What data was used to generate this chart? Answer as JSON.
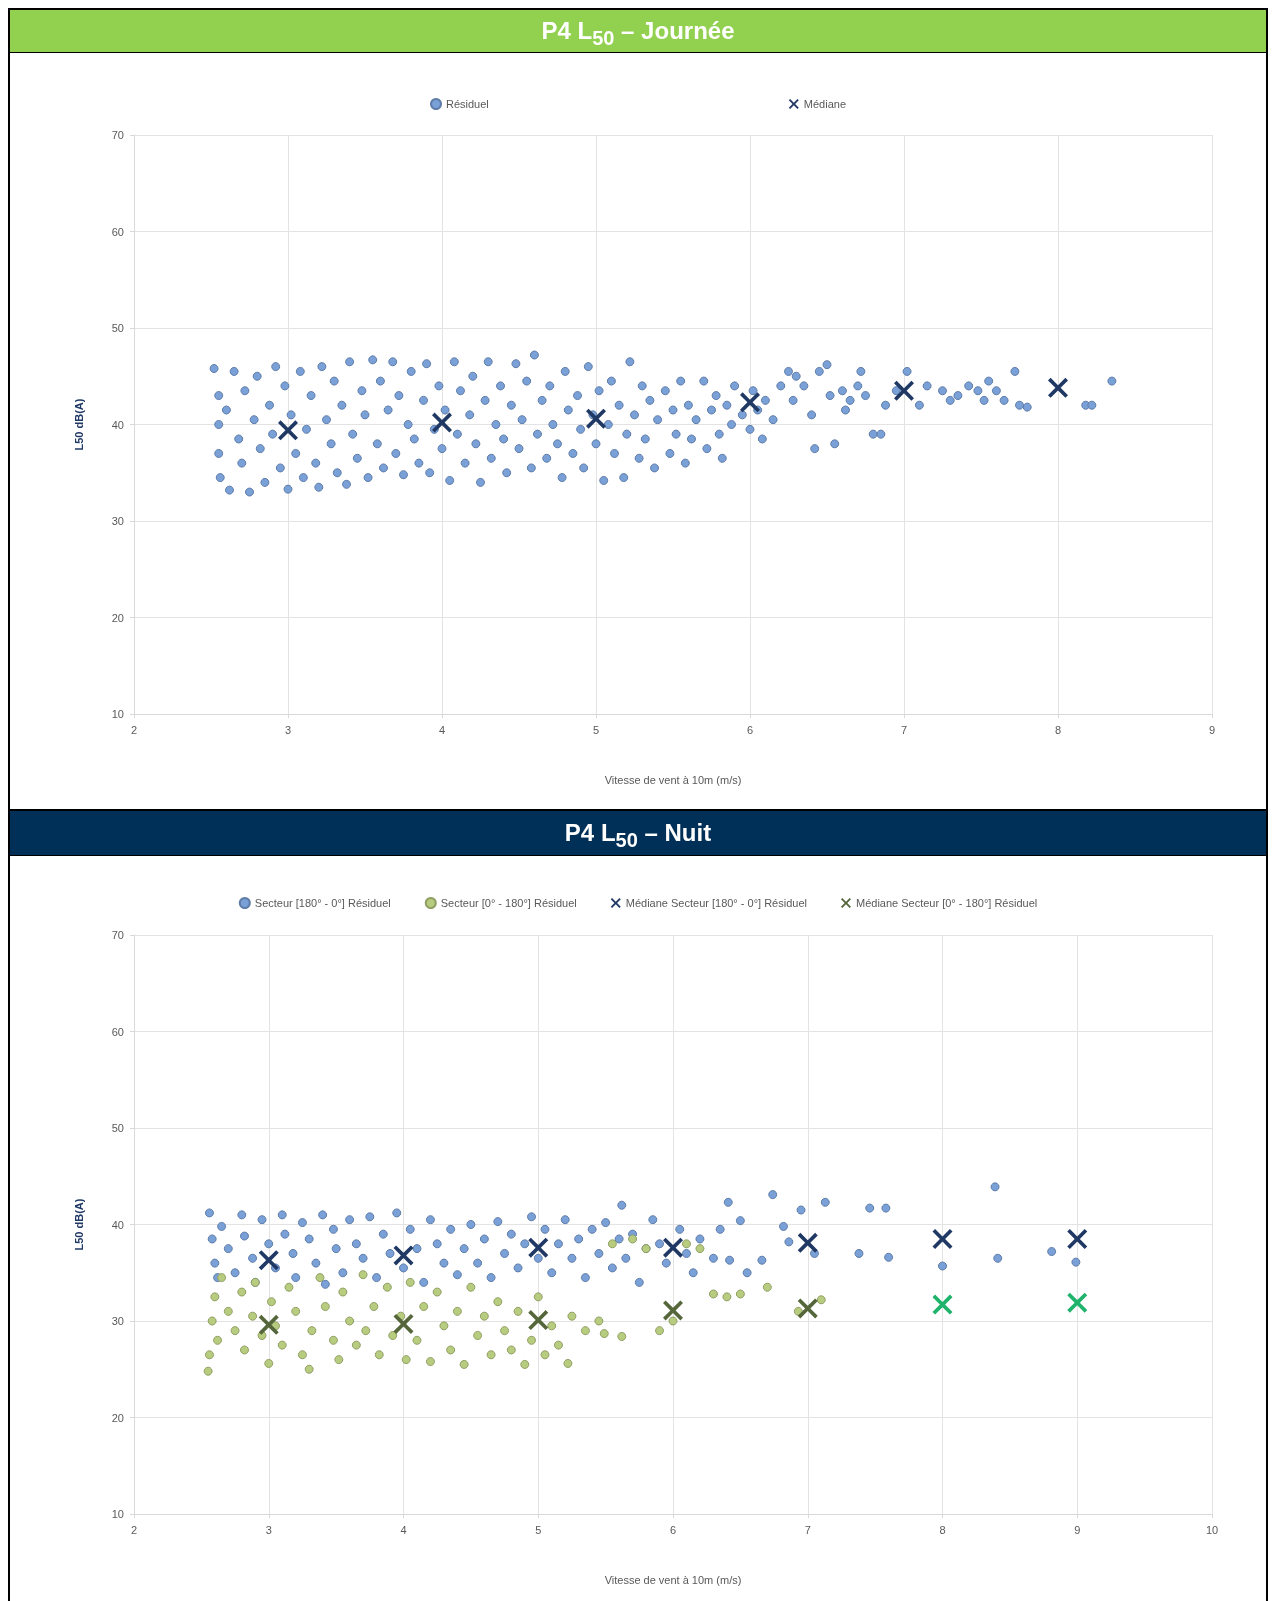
{
  "chart_data": [
    {
      "type": "scatter",
      "title": "P4 L$_{50}$ – Journée",
      "xlabel": "Vitesse de vent à 10m (m/s)",
      "ylabel": "L50 dB(A)",
      "xlim": [
        2,
        9
      ],
      "xticks": [
        2,
        3,
        4,
        5,
        6,
        7,
        8,
        9
      ],
      "ylim": [
        10,
        70
      ],
      "yticks": [
        10,
        20,
        30,
        40,
        50,
        60,
        70
      ],
      "grid": true,
      "legend": "top",
      "series": [
        {
          "name": "Résiduel",
          "color": "#7aa0d8",
          "marker": "circle",
          "x": [
            2.52,
            2.55,
            2.55,
            2.55,
            2.56,
            2.6,
            2.62,
            2.65,
            2.68,
            2.7,
            2.72,
            2.75,
            2.78,
            2.8,
            2.82,
            2.85,
            2.88,
            2.9,
            2.92,
            2.95,
            2.98,
            3.0,
            3.02,
            3.05,
            3.08,
            3.1,
            3.12,
            3.15,
            3.18,
            3.2,
            3.22,
            3.25,
            3.28,
            3.3,
            3.32,
            3.35,
            3.38,
            3.4,
            3.42,
            3.45,
            3.48,
            3.5,
            3.52,
            3.55,
            3.58,
            3.6,
            3.62,
            3.65,
            3.68,
            3.7,
            3.72,
            3.75,
            3.78,
            3.8,
            3.82,
            3.85,
            3.88,
            3.9,
            3.92,
            3.95,
            3.98,
            4.0,
            4.02,
            4.05,
            4.08,
            4.1,
            4.12,
            4.15,
            4.18,
            4.2,
            4.22,
            4.25,
            4.28,
            4.3,
            4.32,
            4.35,
            4.38,
            4.4,
            4.42,
            4.45,
            4.48,
            4.5,
            4.52,
            4.55,
            4.58,
            4.6,
            4.62,
            4.65,
            4.68,
            4.7,
            4.72,
            4.75,
            4.78,
            4.8,
            4.82,
            4.85,
            4.88,
            4.9,
            4.92,
            4.95,
            4.98,
            5.0,
            5.02,
            5.05,
            5.08,
            5.1,
            5.12,
            5.15,
            5.18,
            5.2,
            5.22,
            5.25,
            5.28,
            5.3,
            5.32,
            5.35,
            5.38,
            5.4,
            5.45,
            5.48,
            5.5,
            5.52,
            5.55,
            5.58,
            5.6,
            5.62,
            5.65,
            5.7,
            5.72,
            5.75,
            5.78,
            5.8,
            5.82,
            5.85,
            5.88,
            5.9,
            5.95,
            6.0,
            6.02,
            6.05,
            6.08,
            6.1,
            6.15,
            6.2,
            6.25,
            6.28,
            6.3,
            6.35,
            6.4,
            6.42,
            6.45,
            6.5,
            6.52,
            6.55,
            6.6,
            6.62,
            6.65,
            6.7,
            6.72,
            6.75,
            6.8,
            6.85,
            6.88,
            6.95,
            7.02,
            7.1,
            7.15,
            7.25,
            7.3,
            7.35,
            7.42,
            7.48,
            7.52,
            7.55,
            7.6,
            7.65,
            7.72,
            7.75,
            7.8,
            8.18,
            8.22,
            8.35
          ],
          "values": [
            45.8,
            43,
            40,
            37,
            34.5,
            41.5,
            33.2,
            45.5,
            38.5,
            36,
            43.5,
            33,
            40.5,
            45,
            37.5,
            34,
            42,
            39,
            46,
            35.5,
            44,
            33.3,
            41,
            37,
            45.5,
            34.5,
            39.5,
            43,
            36,
            33.5,
            46,
            40.5,
            38,
            44.5,
            35,
            42,
            33.8,
            46.5,
            39,
            36.5,
            43.5,
            41,
            34.5,
            46.7,
            38,
            44.5,
            35.5,
            41.5,
            46.5,
            37,
            43,
            34.8,
            40,
            45.5,
            38.5,
            36,
            42.5,
            46.3,
            35,
            39.5,
            44,
            37.5,
            41.5,
            34.2,
            46.5,
            39,
            43.5,
            36,
            41,
            45,
            38,
            34,
            42.5,
            46.5,
            36.5,
            40,
            44,
            38.5,
            35,
            42,
            46.3,
            37.5,
            40.5,
            44.5,
            35.5,
            47.2,
            39,
            42.5,
            36.5,
            44,
            40,
            38,
            34.5,
            45.5,
            41.5,
            37,
            43,
            39.5,
            35.5,
            46,
            41,
            38,
            43.5,
            34.2,
            40,
            44.5,
            37,
            42,
            34.5,
            39,
            46.5,
            41,
            36.5,
            44,
            38.5,
            42.5,
            35.5,
            40.5,
            43.5,
            37,
            41.5,
            39,
            44.5,
            36,
            42,
            38.5,
            40.5,
            44.5,
            37.5,
            41.5,
            43,
            39,
            36.5,
            42,
            40,
            44,
            41,
            39.5,
            43.5,
            41.5,
            38.5,
            42.5,
            40.5,
            44,
            45.5,
            42.5,
            45,
            44,
            41,
            37.5,
            45.5,
            46.2,
            43,
            38,
            43.5,
            41.5,
            42.5,
            44,
            45.5,
            43,
            39,
            39,
            42,
            43.5,
            45.5,
            42,
            44,
            43.5,
            42.5,
            43,
            44,
            43.5,
            42.5,
            44.5,
            43.5,
            42.5,
            45.5,
            42,
            41.8,
            42,
            42,
            44.5
          ]
        },
        {
          "name": "Médiane",
          "color": "#1f3864",
          "marker": "cross",
          "x": [
            3,
            4,
            5,
            6,
            7,
            8
          ],
          "values": [
            39.4,
            40.2,
            40.6,
            42.3,
            43.5,
            43.8
          ]
        }
      ]
    },
    {
      "type": "scatter",
      "title": "P4 L$_{50}$ – Nuit",
      "xlabel": "Vitesse de vent à 10m (m/s)",
      "ylabel": "L50 dB(A)",
      "xlim": [
        2,
        10
      ],
      "xticks": [
        2,
        3,
        4,
        5,
        6,
        7,
        8,
        9,
        10
      ],
      "ylim": [
        10,
        70
      ],
      "yticks": [
        10,
        20,
        30,
        40,
        50,
        60,
        70
      ],
      "grid": true,
      "legend": "top",
      "series": [
        {
          "name": "Secteur [180° - 0°] Résiduel",
          "color": "#7aa0d8",
          "marker": "circle",
          "x": [
            2.56,
            2.58,
            2.6,
            2.62,
            2.65,
            2.7,
            2.75,
            2.8,
            2.82,
            2.88,
            2.9,
            2.95,
            3.0,
            3.05,
            3.1,
            3.12,
            3.18,
            3.2,
            3.25,
            3.3,
            3.35,
            3.4,
            3.42,
            3.48,
            3.5,
            3.55,
            3.6,
            3.65,
            3.7,
            3.75,
            3.8,
            3.85,
            3.9,
            3.95,
            4.0,
            4.05,
            4.1,
            4.15,
            4.2,
            4.25,
            4.3,
            4.35,
            4.4,
            4.45,
            4.5,
            4.55,
            4.6,
            4.65,
            4.7,
            4.75,
            4.8,
            4.85,
            4.9,
            4.95,
            5.0,
            5.05,
            5.1,
            5.15,
            5.2,
            5.25,
            5.3,
            5.35,
            5.4,
            5.45,
            5.5,
            5.55,
            5.6,
            5.62,
            5.65,
            5.7,
            5.75,
            5.8,
            5.85,
            5.9,
            5.95,
            6.05,
            6.1,
            6.15,
            6.2,
            6.3,
            6.35,
            6.41,
            6.42,
            6.5,
            6.55,
            6.66,
            6.74,
            6.82,
            6.86,
            6.95,
            7.05,
            7.13,
            7.38,
            7.46,
            7.58,
            7.6,
            8.0,
            8.39,
            8.41,
            8.81,
            8.99
          ],
          "values": [
            41.2,
            38.5,
            36,
            34.5,
            39.8,
            37.5,
            35,
            41,
            38.8,
            36.5,
            34,
            40.5,
            38,
            35.5,
            41,
            39,
            37,
            34.5,
            40.2,
            38.5,
            36,
            41,
            33.8,
            39.5,
            37.5,
            35,
            40.5,
            38,
            36.5,
            40.8,
            34.5,
            39,
            37,
            41.2,
            35.5,
            39.5,
            37.5,
            34,
            40.5,
            38,
            36,
            39.5,
            34.8,
            37.5,
            40,
            36,
            38.5,
            34.5,
            40.3,
            37,
            39,
            35.5,
            38,
            40.8,
            36.5,
            39.5,
            35,
            38,
            40.5,
            36.5,
            38.5,
            34.5,
            39.5,
            37,
            40.2,
            35.5,
            38.5,
            42,
            36.5,
            39,
            34,
            37.5,
            40.5,
            38,
            36,
            39.5,
            37,
            35,
            38.5,
            36.5,
            39.5,
            42.3,
            36.3,
            40.4,
            35,
            36.3,
            43.1,
            39.8,
            38.2,
            41.5,
            37,
            42.3,
            37,
            41.7,
            41.7,
            36.6,
            35.7,
            43.9,
            36.5,
            37.2,
            36.1
          ]
        },
        {
          "name": "Secteur [0° - 180°] Résiduel",
          "color": "#b8cc80",
          "marker": "circle",
          "x": [
            2.55,
            2.56,
            2.58,
            2.6,
            2.62,
            2.65,
            2.7,
            2.75,
            2.8,
            2.82,
            2.88,
            2.9,
            2.95,
            3.0,
            3.02,
            3.05,
            3.1,
            3.15,
            3.2,
            3.25,
            3.3,
            3.32,
            3.38,
            3.42,
            3.48,
            3.52,
            3.55,
            3.6,
            3.65,
            3.7,
            3.72,
            3.78,
            3.82,
            3.88,
            3.92,
            3.98,
            4.02,
            4.05,
            4.1,
            4.15,
            4.2,
            4.25,
            4.3,
            4.35,
            4.4,
            4.45,
            4.5,
            4.55,
            4.6,
            4.65,
            4.7,
            4.75,
            4.8,
            4.85,
            4.9,
            4.95,
            5.0,
            5.05,
            5.1,
            5.15,
            5.22,
            5.25,
            5.35,
            5.45,
            5.49,
            5.55,
            5.62,
            5.7,
            5.8,
            5.9,
            6.0,
            6.1,
            6.2,
            6.3,
            6.4,
            6.5,
            6.7,
            6.93,
            7.1
          ],
          "values": [
            24.8,
            26.5,
            30,
            32.5,
            28,
            34.5,
            31,
            29,
            33,
            27,
            30.5,
            34,
            28.5,
            25.6,
            32,
            29.5,
            27.5,
            33.5,
            31,
            26.5,
            25,
            29,
            34.5,
            31.5,
            28,
            26,
            33,
            30,
            27.5,
            34.8,
            29,
            31.5,
            26.5,
            33.5,
            28.5,
            30.5,
            26,
            34,
            28,
            31.5,
            25.8,
            33,
            29.5,
            27,
            31,
            25.5,
            33.5,
            28.5,
            30.5,
            26.5,
            32,
            29,
            27,
            31,
            25.5,
            28,
            32.5,
            26.5,
            29.5,
            27.5,
            25.6,
            30.5,
            29,
            30,
            28.7,
            38,
            28.4,
            38.5,
            37.5,
            29,
            30,
            38,
            37.5,
            32.8,
            32.5,
            32.8,
            33.5,
            31,
            32.2
          ]
        },
        {
          "name": "Médiane Secteur [180° - 0°] Résiduel",
          "color": "#1f3864",
          "marker": "cross",
          "x": [
            3,
            4,
            5,
            6,
            7,
            8,
            9
          ],
          "values": [
            36.3,
            36.8,
            37.6,
            37.6,
            38.1,
            38.5,
            38.5
          ]
        },
        {
          "name": "Médiane Secteur [0° - 180°] Résiduel",
          "color": "#55673a",
          "colors": [
            "#55673a",
            "#55673a",
            "#55673a",
            "#55673a",
            "#55673a",
            "#1fb36b",
            "#1fb36b"
          ],
          "marker": "cross",
          "x": [
            3,
            4,
            5,
            6,
            7,
            8,
            9
          ],
          "values": [
            29.6,
            29.7,
            30.1,
            31.1,
            31.3,
            31.7,
            31.9
          ]
        }
      ]
    }
  ]
}
